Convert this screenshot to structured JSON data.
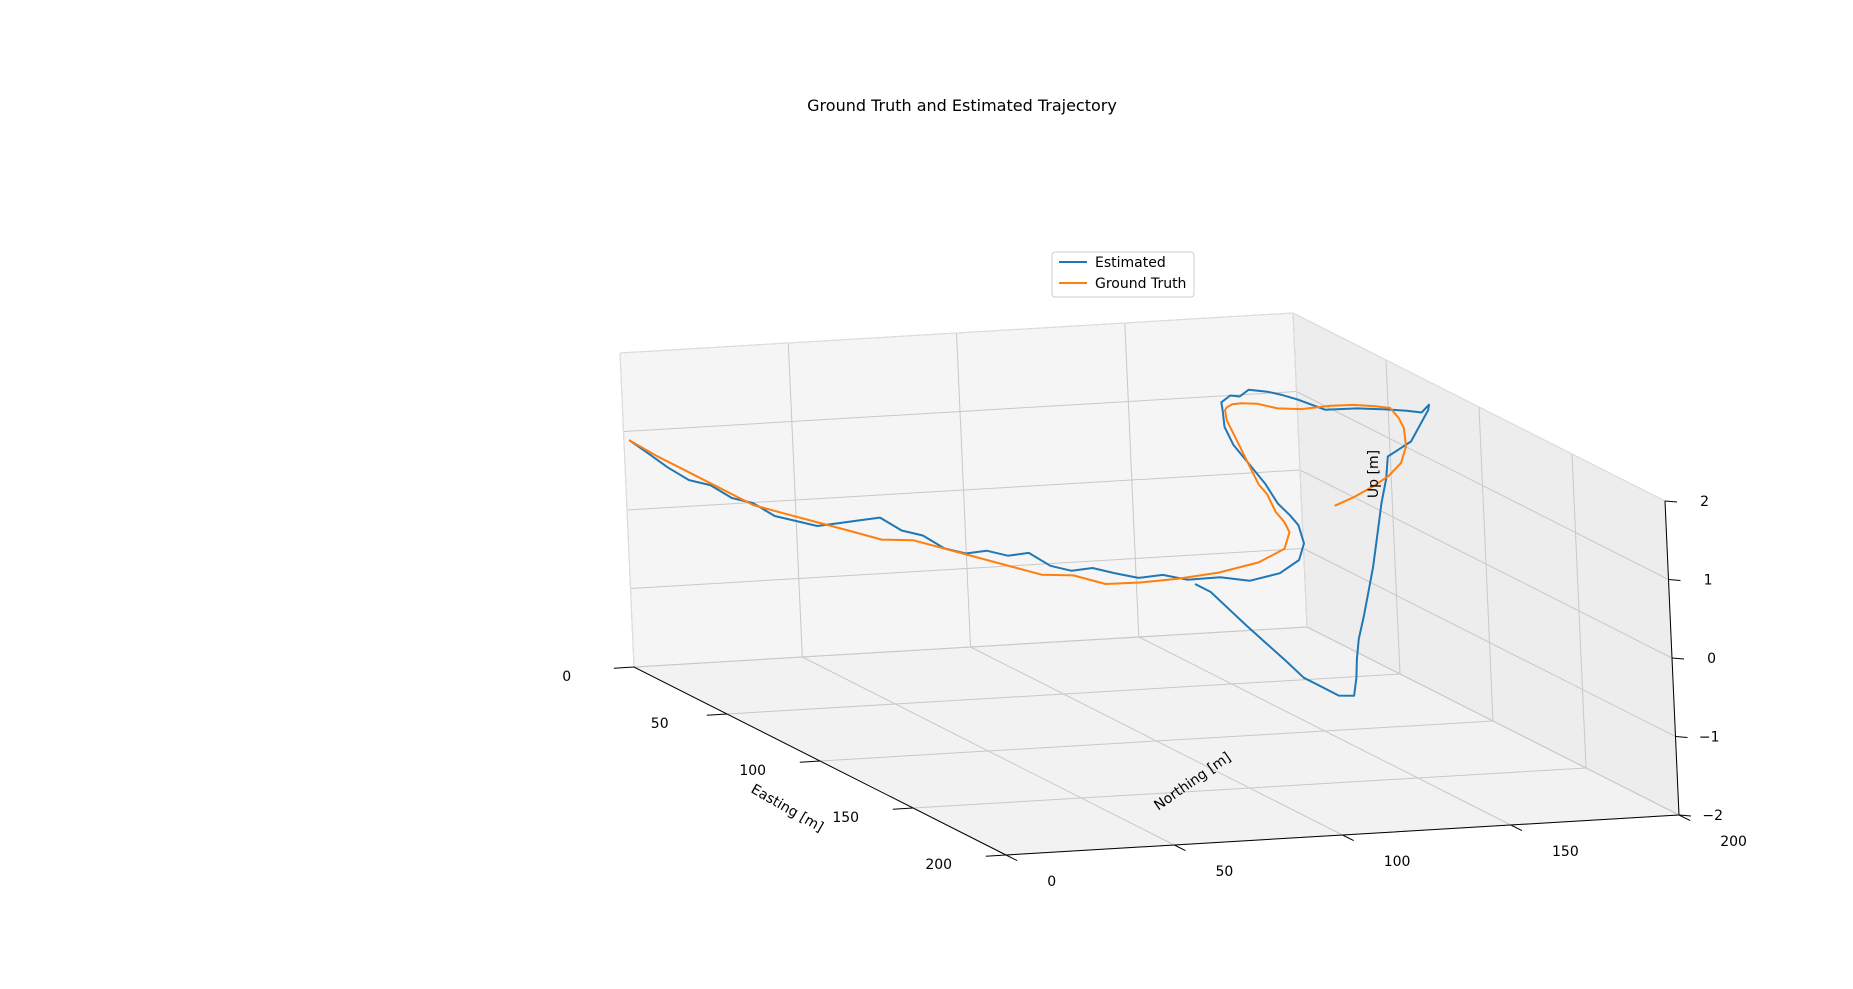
{
  "chart_data": {
    "type": "line",
    "projection": "3d",
    "title": "Ground Truth and Estimated Trajectory",
    "xlabel": "Easting [m]",
    "ylabel": "Northing [m]",
    "zlabel": "Up [m]",
    "xlim": [
      0,
      200
    ],
    "ylim": [
      0,
      200
    ],
    "zlim": [
      -2,
      2
    ],
    "xticks": [
      0,
      50,
      100,
      150,
      200
    ],
    "yticks": [
      0,
      50,
      100,
      150,
      200
    ],
    "zticks": [
      -2,
      -1,
      0,
      1,
      2
    ],
    "xtick_labels": [
      "0",
      "50",
      "100",
      "150",
      "200"
    ],
    "ytick_labels": [
      "0",
      "50",
      "100",
      "150",
      "200"
    ],
    "ztick_labels": [
      "−2",
      "−1",
      "0",
      "1",
      "2"
    ],
    "grid": true,
    "legend_position": "upper right",
    "series": [
      {
        "name": "Estimated",
        "color": "#1f77b4",
        "note_points": "approximate, read from projected view",
        "x": [
          1,
          8,
          14,
          20,
          26,
          32,
          38,
          44,
          50,
          56,
          62,
          68,
          74,
          80,
          86,
          92,
          98,
          104,
          110,
          116,
          122,
          128,
          134,
          140,
          146,
          152,
          158,
          165,
          170,
          172,
          168,
          160,
          150,
          140,
          128,
          116,
          104,
          92,
          82,
          74,
          66,
          60,
          54,
          48,
          42,
          36,
          32,
          30,
          34,
          42,
          52,
          62,
          72,
          80,
          85,
          84,
          82,
          88,
          96,
          104,
          112,
          120,
          128,
          134,
          138,
          141,
          143,
          142,
          140,
          138,
          136,
          133,
          130,
          128,
          126,
          125
        ],
        "y": [
          1,
          3,
          5,
          8,
          11,
          14,
          17,
          20,
          23,
          26,
          29,
          32,
          35,
          38,
          41,
          44,
          47,
          50,
          53,
          56,
          59,
          62,
          65,
          68,
          72,
          76,
          80,
          86,
          92,
          100,
          108,
          114,
          118,
          121,
          124,
          127,
          129,
          131,
          134,
          138,
          142,
          148,
          154,
          160,
          166,
          172,
          178,
          184,
          190,
          195,
          198,
          199,
          198,
          196,
          193,
          188,
          182,
          178,
          172,
          166,
          160,
          154,
          148,
          143,
          140,
          138,
          136,
          132,
          128,
          124,
          120,
          116,
          112,
          108,
          104,
          100
        ],
        "z": [
          0.9,
          0.8,
          0.7,
          0.6,
          0.6,
          0.5,
          0.5,
          0.4,
          0.4,
          0.4,
          0.5,
          0.6,
          0.7,
          0.6,
          0.6,
          0.5,
          0.5,
          0.6,
          0.6,
          0.7,
          0.6,
          0.6,
          0.7,
          0.7,
          0.7,
          0.8,
          0.8,
          0.9,
          0.9,
          1.0,
          1.1,
          1.2,
          1.3,
          1.3,
          1.3,
          1.4,
          1.5,
          1.6,
          1.7,
          1.8,
          1.8,
          1.8,
          1.7,
          1.7,
          1.6,
          1.5,
          1.4,
          1.3,
          1.2,
          1.3,
          1.4,
          1.5,
          1.6,
          1.8,
          1.8,
          1.4,
          1.2,
          1.0,
          0.8,
          0.5,
          0.2,
          0.0,
          -0.2,
          -0.4,
          -0.6,
          -0.8,
          -1.0,
          -1.0,
          -0.9,
          -0.8,
          -0.6,
          -0.4,
          -0.2,
          0.0,
          0.2,
          0.3
        ]
      },
      {
        "name": "Ground Truth",
        "color": "#ff7f0e",
        "note_points": "approximate, read from projected view",
        "x": [
          1,
          10,
          20,
          30,
          40,
          50,
          60,
          70,
          80,
          90,
          100,
          110,
          120,
          130,
          140,
          150,
          158,
          164,
          168,
          168,
          164,
          156,
          146,
          136,
          126,
          116,
          106,
          96,
          86,
          76,
          66,
          56,
          46,
          38,
          32,
          30,
          32,
          38,
          46,
          56,
          66,
          76,
          86,
          96,
          104,
          108,
          110,
          111,
          111
        ],
        "y": [
          1,
          4,
          8,
          12,
          16,
          20,
          24,
          28,
          32,
          36,
          40,
          44,
          48,
          52,
          56,
          60,
          66,
          74,
          84,
          96,
          106,
          112,
          116,
          119,
          122,
          125,
          128,
          131,
          134,
          138,
          143,
          149,
          156,
          163,
          171,
          178,
          184,
          189,
          192,
          193,
          192,
          189,
          185,
          180,
          174,
          168,
          162,
          156,
          150
        ],
        "z": [
          0.9,
          0.8,
          0.7,
          0.6,
          0.5,
          0.5,
          0.5,
          0.5,
          0.5,
          0.6,
          0.6,
          0.6,
          0.6,
          0.6,
          0.7,
          0.7,
          0.8,
          0.9,
          1.0,
          1.1,
          1.2,
          1.3,
          1.3,
          1.3,
          1.4,
          1.4,
          1.5,
          1.6,
          1.7,
          1.7,
          1.7,
          1.6,
          1.5,
          1.4,
          1.3,
          1.2,
          1.2,
          1.3,
          1.4,
          1.5,
          1.6,
          1.6,
          1.6,
          1.5,
          1.4,
          1.3,
          1.2,
          1.1,
          1.0
        ]
      }
    ]
  }
}
